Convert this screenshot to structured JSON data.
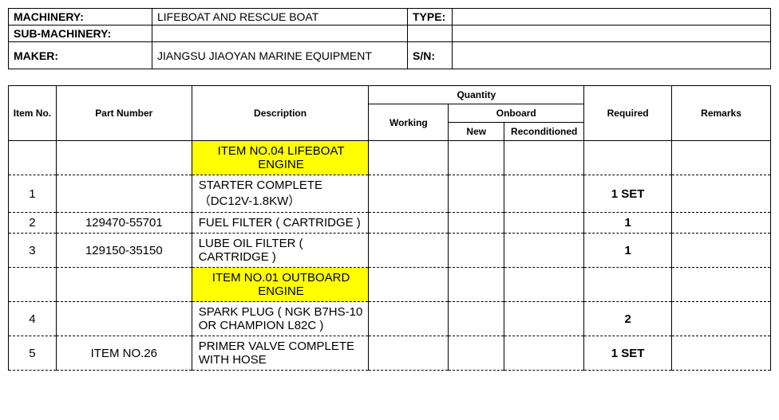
{
  "header": {
    "machinery_label": "MACHINERY:",
    "machinery_value": "LIFEBOAT AND RESCUE BOAT",
    "type_label": "TYPE:",
    "type_value": "",
    "sub_machinery_label": "SUB-MACHINERY:",
    "sub_machinery_value": "",
    "maker_label": "MAKER:",
    "maker_value": "JIANGSU JIAOYAN MARINE EQUIPMENT",
    "sn_label": "S/N:",
    "sn_value": ""
  },
  "columns": {
    "item_no": "Item No.",
    "part_number": "Part Number",
    "description": "Description",
    "quantity": "Quantity",
    "working": "Working",
    "onboard": "Onboard",
    "new": "New",
    "reconditioned": "Reconditioned",
    "required": "Required",
    "remarks": "Remarks"
  },
  "rows": [
    {
      "section": "ITEM NO.04 LIFEBOAT ENGINE",
      "item": "",
      "part": "",
      "desc": "",
      "working": "",
      "new": "",
      "recond": "",
      "req": "",
      "rem": "",
      "highlight": true
    },
    {
      "item": "1",
      "part": "",
      "desc": "STARTER COMPLETE （DC12V-1.8KW）",
      "working": "",
      "new": "",
      "recond": "",
      "req": "1 SET",
      "req_bold": true,
      "rem": ""
    },
    {
      "item": "2",
      "part": "129470-55701",
      "desc": "FUEL FILTER ( CARTRIDGE )",
      "working": "",
      "new": "",
      "recond": "",
      "req": "1",
      "req_bold": true,
      "rem": ""
    },
    {
      "item": "3",
      "part": "129150-35150",
      "desc": "LUBE OIL FILTER ( CARTRIDGE )",
      "working": "",
      "new": "",
      "recond": "",
      "req": "1",
      "req_bold": true,
      "rem": ""
    },
    {
      "section": "ITEM NO.01 OUTBOARD ENGINE",
      "item": "",
      "part": "",
      "desc": "",
      "working": "",
      "new": "",
      "recond": "",
      "req": "",
      "rem": "",
      "highlight": true
    },
    {
      "item": "4",
      "part": "",
      "desc": "SPARK PLUG ( NGK B7HS-10 OR CHAMPION L82C )",
      "working": "",
      "new": "",
      "recond": "",
      "req": "2",
      "req_bold": true,
      "rem": ""
    },
    {
      "item": "5",
      "part": "ITEM NO.26",
      "desc": "PRIMER VALVE COMPLETE WITH HOSE",
      "working": "",
      "new": "",
      "recond": "",
      "req": "1 SET",
      "req_bold": true,
      "rem": ""
    }
  ],
  "styling": {
    "highlight_bg": "#ffff00",
    "border_color": "#000000",
    "font_family": "Arial",
    "header_font_size": 14,
    "body_font_size": 15,
    "col_header_font_size": 12
  }
}
